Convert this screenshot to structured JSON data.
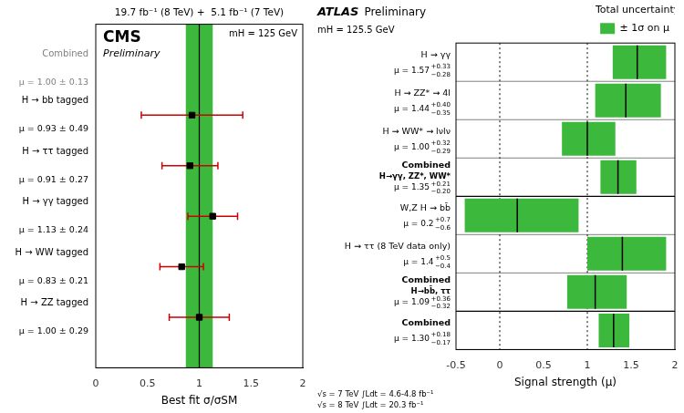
{
  "chart_data": [
    {
      "type": "errorbar",
      "title": "19.7 fb⁻¹ (8 TeV) +  5.1 fb⁻¹ (7 TeV)",
      "experiment": "CMS",
      "status": "Preliminary",
      "mass_label": "mH = 125 GeV",
      "xlabel": "Best fit σ/σSM",
      "xlim": [
        0,
        2
      ],
      "xticks": [
        0,
        0.5,
        1,
        1.5,
        2
      ],
      "grid": false,
      "reference_lines": [
        1.0
      ],
      "combined": {
        "label": "Combined",
        "value_label": "μ = 1.00 ± 0.13",
        "low": 0.87,
        "high": 1.13,
        "color": "#3cb83c"
      },
      "categories": [
        "H → bb tagged",
        "H → ττ tagged",
        "H → γγ tagged",
        "H → WW tagged",
        "H → ZZ tagged"
      ],
      "series": [
        {
          "marker": "square",
          "color": "#cc0000",
          "values": [
            0.93,
            0.91,
            1.13,
            0.83,
            1.0
          ],
          "errors": [
            0.49,
            0.27,
            0.24,
            0.21,
            0.29
          ],
          "value_labels": [
            "μ = 0.93 ± 0.49",
            "μ = 0.91 ± 0.27",
            "μ = 1.13 ± 0.24",
            "μ = 0.83 ± 0.21",
            "μ = 1.00 ± 0.29"
          ]
        }
      ]
    },
    {
      "type": "interval",
      "experiment": "ATLAS",
      "status": "Preliminary",
      "mass_label": "mH = 125.5 GeV",
      "xlabel": "Signal strength (μ)",
      "xlim": [
        -0.5,
        2.0
      ],
      "xticks": [
        -0.5,
        0,
        0.5,
        1,
        1.5,
        2
      ],
      "grid": false,
      "legend": "top-right",
      "legend_title": "Total uncertainty",
      "reference_lines": [
        0,
        1
      ],
      "footnotes": [
        "√s = 7 TeV ∫Ldt = 4.6-4.8 fb⁻¹",
        "√s = 8 TeV ∫Ldt = 20.3 fb⁻¹"
      ],
      "series": [
        {
          "name": "± 1σ on μ",
          "color": "#3cb83c",
          "groups": [
            {
              "rows": [
                {
                  "label": "H → γγ",
                  "value": 1.57,
                  "low": 1.29,
                  "high": 1.9,
                  "value_label": {
                    "main": "μ = 1.57",
                    "sup": "+0.33",
                    "sub": "−0.28"
                  }
                },
                {
                  "label": "H → ZZ* → 4l",
                  "value": 1.44,
                  "low": 1.09,
                  "high": 1.84,
                  "value_label": {
                    "main": "μ = 1.44",
                    "sup": "+0.40",
                    "sub": "−0.35"
                  }
                },
                {
                  "label": "H → WW* → lνlν",
                  "value": 1.0,
                  "low": 0.71,
                  "high": 1.32,
                  "value_label": {
                    "main": "μ = 1.00",
                    "sup": "+0.32",
                    "sub": "−0.29"
                  }
                }
              ],
              "combined": {
                "label": "Combined",
                "sublabel": "H→γγ, ZZ*, WW*",
                "value": 1.35,
                "low": 1.15,
                "high": 1.56,
                "value_label": {
                  "main": "μ = 1.35",
                  "sup": "+0.21",
                  "sub": "−0.20"
                }
              }
            },
            {
              "rows": [
                {
                  "label": "W,Z H → bb̄",
                  "value": 0.2,
                  "low": -0.4,
                  "high": 0.9,
                  "value_label": {
                    "main": "μ = 0.2",
                    "sup": "+0.7",
                    "sub": "−0.6"
                  }
                },
                {
                  "label": "H → ττ (8 TeV data only)",
                  "value": 1.4,
                  "low": 1.0,
                  "high": 1.9,
                  "value_label": {
                    "main": "μ = 1.4",
                    "sup": "+0.5",
                    "sub": "−0.4"
                  }
                }
              ],
              "combined": {
                "label": "Combined",
                "sublabel": "H→bb̄, ττ",
                "value": 1.09,
                "low": 0.77,
                "high": 1.45,
                "value_label": {
                  "main": "μ = 1.09",
                  "sup": "+0.36",
                  "sub": "−0.32"
                }
              }
            },
            {
              "rows": [],
              "combined": {
                "label": "Combined",
                "value": 1.3,
                "low": 1.13,
                "high": 1.48,
                "value_label": {
                  "main": "μ = 1.30",
                  "sup": "+0.18",
                  "sub": "−0.17"
                }
              }
            }
          ]
        }
      ]
    }
  ]
}
